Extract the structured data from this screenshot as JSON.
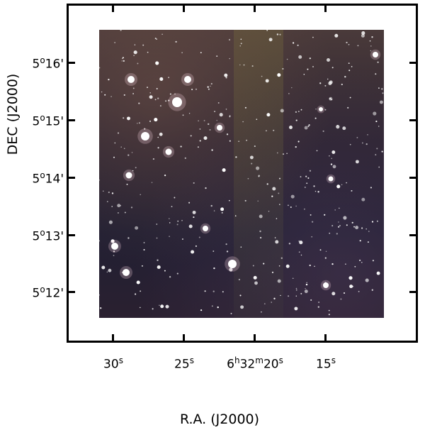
{
  "axes": {
    "ylabel": "DEC (J2000)",
    "xlabel": "R.A. (J2000)",
    "yticks": [
      {
        "deg": "5",
        "unit": "o",
        "min": "16",
        "prime": "'"
      },
      {
        "deg": "5",
        "unit": "o",
        "min": "15",
        "prime": "'"
      },
      {
        "deg": "5",
        "unit": "o",
        "min": "14",
        "prime": "'"
      },
      {
        "deg": "5",
        "unit": "o",
        "min": "13",
        "prime": "'"
      },
      {
        "deg": "5",
        "unit": "o",
        "min": "12",
        "prime": "'"
      }
    ],
    "xticks": [
      {
        "prefix": "",
        "val": "30",
        "unit": "s"
      },
      {
        "prefix": "",
        "val": "25",
        "unit": "s"
      },
      {
        "prefix": "6",
        "val": "20",
        "unit": "s",
        "h": "h",
        "m": "32",
        "mu": "m"
      },
      {
        "prefix": "",
        "val": "15",
        "unit": "s"
      }
    ]
  },
  "image": {
    "description_colors": {
      "background": "#2a2433",
      "stars": "#ffffff"
    }
  }
}
